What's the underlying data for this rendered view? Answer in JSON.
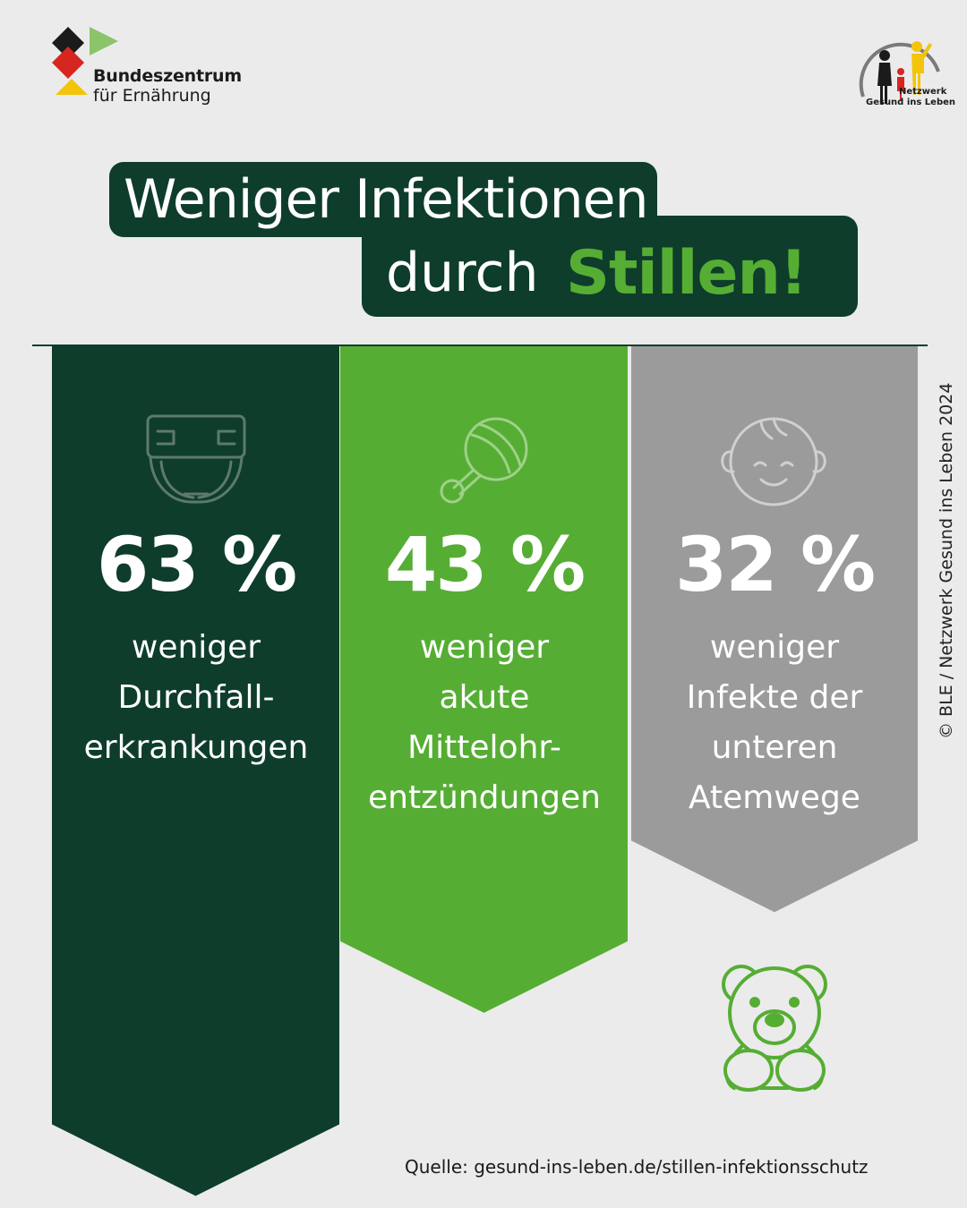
{
  "logo": {
    "line1": "Bundeszentrum",
    "line2": "für Ernährung"
  },
  "network_logo": {
    "line1": "Netzwerk",
    "line2": "Gesund ins Leben"
  },
  "title": {
    "line1": "Weniger Infektionen",
    "line2_prefix": "durch",
    "line2_highlight": "Stillen!"
  },
  "chart_data": {
    "type": "bar",
    "unit": "%",
    "categories": [
      "weniger Durchfall-erkrankungen",
      "weniger akute Mittelohr-entzündungen",
      "weniger Infekte der unteren Atemwege"
    ],
    "values": [
      63,
      43,
      32
    ],
    "bars": [
      {
        "value": 63,
        "label": "63 %",
        "desc_lines": [
          "weniger",
          "Durchfall-",
          "erkrankungen"
        ],
        "icon": "diaper-icon",
        "color": "#0e3d2c"
      },
      {
        "value": 43,
        "label": "43 %",
        "desc_lines": [
          "weniger",
          "akute",
          "Mittelohr-",
          "entzündungen"
        ],
        "icon": "rattle-icon",
        "color": "#56ad34"
      },
      {
        "value": 32,
        "label": "32 %",
        "desc_lines": [
          "weniger",
          "Infekte der",
          "unteren",
          "Atemwege"
        ],
        "icon": "baby-face-icon",
        "color": "#9b9b9b"
      }
    ]
  },
  "colors": {
    "dark_green": "#0e3d2c",
    "green": "#56ad34",
    "grey": "#9b9b9b",
    "background": "#ebebeb"
  },
  "decoration": {
    "teddy": "teddy-bear-icon"
  },
  "credit": "© BLE / Netzwerk Gesund ins Leben 2024",
  "source": "Quelle: gesund-ins-leben.de/stillen-infektionsschutz"
}
